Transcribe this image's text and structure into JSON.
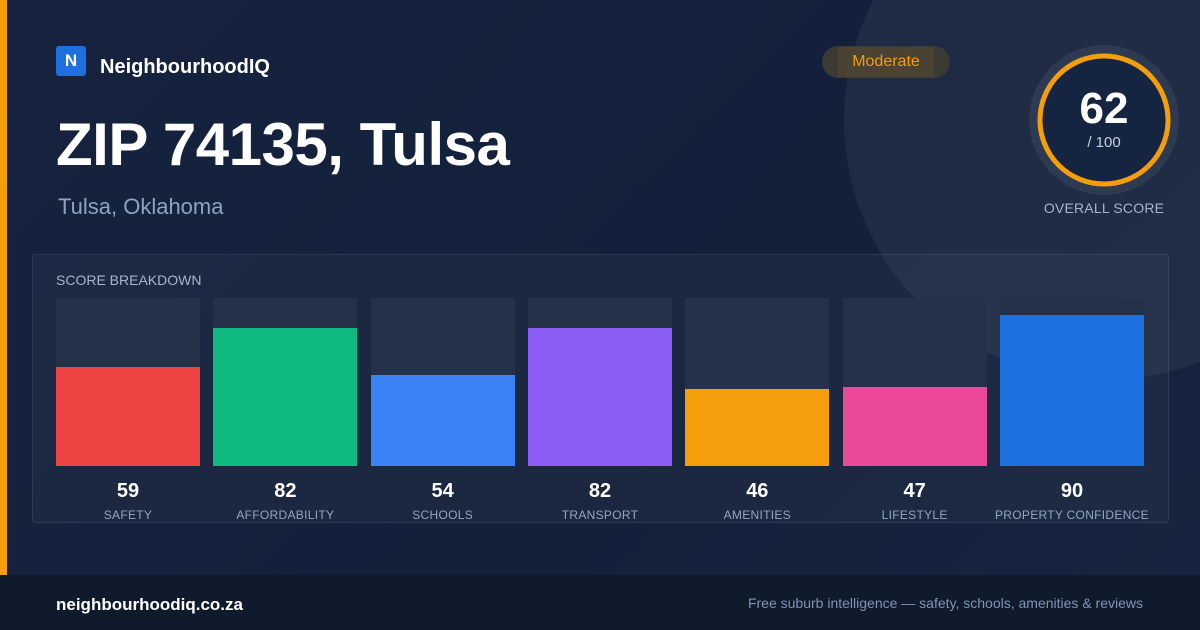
{
  "brand": {
    "logo_letter": "N",
    "name": "NeighbourhoodIQ"
  },
  "hero": {
    "title": "ZIP 74135, Tulsa",
    "subtitle": "Tulsa, Oklahoma"
  },
  "rating_badge": {
    "label": "Moderate",
    "color": "#f59e0b"
  },
  "overall_score": {
    "value": "62",
    "max_text": "/ 100",
    "label": "OVERALL SCORE",
    "fraction": 0.62,
    "ring_color": "#f59e0b"
  },
  "breakdown": {
    "title": "SCORE BREAKDOWN",
    "items": [
      {
        "label": "SAFETY",
        "value": 59,
        "color": "#ef4444"
      },
      {
        "label": "AFFORDABILITY",
        "value": 82,
        "color": "#10b981"
      },
      {
        "label": "SCHOOLS",
        "value": 54,
        "color": "#3b82f6"
      },
      {
        "label": "TRANSPORT",
        "value": 82,
        "color": "#8b5cf6"
      },
      {
        "label": "AMENITIES",
        "value": 46,
        "color": "#f59e0b"
      },
      {
        "label": "LIFESTYLE",
        "value": 47,
        "color": "#ec4899"
      },
      {
        "label": "PROPERTY CONFIDENCE",
        "value": 90,
        "color": "#1e6fe0"
      }
    ]
  },
  "footer": {
    "url": "neighbourhoodiq.co.za",
    "tagline": "Free suburb intelligence — safety, schools, amenities & reviews"
  }
}
